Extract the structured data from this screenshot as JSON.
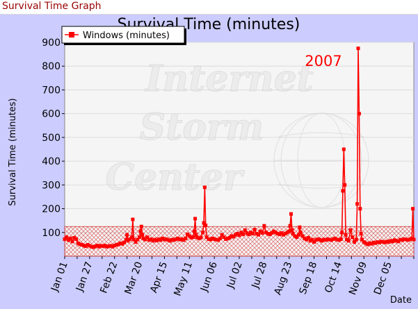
{
  "page": {
    "title": "Survival Time Graph"
  },
  "chart_data": {
    "type": "line",
    "title": "Survival Time (minutes)",
    "xlabel": "Date",
    "ylabel": "Survival Time (minutes)",
    "year_annotation": "2007",
    "watermark": [
      "Internet",
      "Storm",
      "Center"
    ],
    "ylim": [
      0,
      900
    ],
    "yticks": [
      100,
      200,
      300,
      400,
      500,
      600,
      700,
      800,
      900
    ],
    "xticks": [
      "Jan 01",
      "Jan 27",
      "Feb 22",
      "Mar 20",
      "Apr 15",
      "May 11",
      "Jun 06",
      "Jul 02",
      "Jul 28",
      "Aug 23",
      "Sep 18",
      "Oct 14",
      "Nov 09",
      "Dec 05"
    ],
    "xtick_days": [
      0,
      26,
      52,
      78,
      104,
      130,
      156,
      182,
      208,
      234,
      260,
      286,
      312,
      338
    ],
    "x_range_days": [
      0,
      364
    ],
    "threshold": 125,
    "grid": true,
    "legend_position": "top-left",
    "colors": {
      "series": "#ff0000",
      "background": "#ccccff",
      "plot": "#f5f5f5",
      "title_text": "#990000",
      "hatch": "#dd6666"
    },
    "series": [
      {
        "name": "Windows (minutes)",
        "points": [
          [
            0,
            72
          ],
          [
            2,
            80
          ],
          [
            4,
            68
          ],
          [
            6,
            75
          ],
          [
            8,
            62
          ],
          [
            10,
            78
          ],
          [
            12,
            72
          ],
          [
            14,
            55
          ],
          [
            16,
            50
          ],
          [
            18,
            48
          ],
          [
            20,
            45
          ],
          [
            22,
            42
          ],
          [
            24,
            48
          ],
          [
            26,
            44
          ],
          [
            28,
            40
          ],
          [
            30,
            38
          ],
          [
            32,
            42
          ],
          [
            34,
            45
          ],
          [
            36,
            40
          ],
          [
            38,
            44
          ],
          [
            40,
            42
          ],
          [
            42,
            45
          ],
          [
            44,
            40
          ],
          [
            46,
            42
          ],
          [
            48,
            44
          ],
          [
            50,
            40
          ],
          [
            52,
            45
          ],
          [
            54,
            48
          ],
          [
            56,
            50
          ],
          [
            58,
            55
          ],
          [
            60,
            52
          ],
          [
            62,
            58
          ],
          [
            64,
            70
          ],
          [
            65,
            90
          ],
          [
            66,
            65
          ],
          [
            68,
            72
          ],
          [
            70,
            80
          ],
          [
            71,
            155
          ],
          [
            72,
            70
          ],
          [
            74,
            60
          ],
          [
            76,
            70
          ],
          [
            78,
            80
          ],
          [
            79,
            105
          ],
          [
            80,
            125
          ],
          [
            81,
            90
          ],
          [
            82,
            75
          ],
          [
            84,
            70
          ],
          [
            86,
            80
          ],
          [
            88,
            68
          ],
          [
            90,
            72
          ],
          [
            92,
            65
          ],
          [
            94,
            70
          ],
          [
            96,
            66
          ],
          [
            98,
            72
          ],
          [
            100,
            68
          ],
          [
            102,
            75
          ],
          [
            104,
            70
          ],
          [
            106,
            72
          ],
          [
            108,
            68
          ],
          [
            110,
            65
          ],
          [
            112,
            70
          ],
          [
            114,
            68
          ],
          [
            116,
            72
          ],
          [
            118,
            75
          ],
          [
            120,
            70
          ],
          [
            122,
            72
          ],
          [
            124,
            68
          ],
          [
            126,
            75
          ],
          [
            128,
            92
          ],
          [
            130,
            85
          ],
          [
            132,
            78
          ],
          [
            134,
            80
          ],
          [
            135,
            105
          ],
          [
            136,
            158
          ],
          [
            137,
            90
          ],
          [
            138,
            80
          ],
          [
            140,
            75
          ],
          [
            142,
            78
          ],
          [
            144,
            100
          ],
          [
            145,
            140
          ],
          [
            146,
            290
          ],
          [
            147,
            130
          ],
          [
            148,
            80
          ],
          [
            150,
            72
          ],
          [
            152,
            70
          ],
          [
            154,
            75
          ],
          [
            156,
            72
          ],
          [
            158,
            70
          ],
          [
            160,
            68
          ],
          [
            162,
            75
          ],
          [
            164,
            90
          ],
          [
            166,
            80
          ],
          [
            168,
            72
          ],
          [
            170,
            75
          ],
          [
            172,
            78
          ],
          [
            174,
            85
          ],
          [
            176,
            82
          ],
          [
            178,
            90
          ],
          [
            180,
            95
          ],
          [
            182,
            88
          ],
          [
            184,
            100
          ],
          [
            186,
            92
          ],
          [
            188,
            110
          ],
          [
            190,
            98
          ],
          [
            192,
            92
          ],
          [
            194,
            100
          ],
          [
            196,
            95
          ],
          [
            198,
            112
          ],
          [
            200,
            95
          ],
          [
            202,
            90
          ],
          [
            204,
            105
          ],
          [
            206,
            98
          ],
          [
            208,
            128
          ],
          [
            210,
            100
          ],
          [
            212,
            95
          ],
          [
            214,
            92
          ],
          [
            216,
            98
          ],
          [
            218,
            105
          ],
          [
            220,
            100
          ],
          [
            222,
            95
          ],
          [
            224,
            92
          ],
          [
            226,
            98
          ],
          [
            228,
            90
          ],
          [
            230,
            95
          ],
          [
            232,
            100
          ],
          [
            234,
            105
          ],
          [
            235,
            128
          ],
          [
            236,
            178
          ],
          [
            237,
            110
          ],
          [
            238,
            95
          ],
          [
            240,
            85
          ],
          [
            242,
            80
          ],
          [
            244,
            90
          ],
          [
            245,
            122
          ],
          [
            246,
            100
          ],
          [
            248,
            85
          ],
          [
            250,
            75
          ],
          [
            252,
            70
          ],
          [
            254,
            78
          ],
          [
            256,
            65
          ],
          [
            258,
            70
          ],
          [
            260,
            60
          ],
          [
            262,
            68
          ],
          [
            264,
            72
          ],
          [
            266,
            70
          ],
          [
            268,
            65
          ],
          [
            270,
            70
          ],
          [
            272,
            68
          ],
          [
            274,
            72
          ],
          [
            276,
            70
          ],
          [
            278,
            68
          ],
          [
            280,
            72
          ],
          [
            282,
            75
          ],
          [
            284,
            70
          ],
          [
            286,
            68
          ],
          [
            288,
            72
          ],
          [
            289,
            100
          ],
          [
            290,
            275
          ],
          [
            291,
            450
          ],
          [
            292,
            300
          ],
          [
            293,
            90
          ],
          [
            294,
            70
          ],
          [
            296,
            65
          ],
          [
            298,
            110
          ],
          [
            300,
            80
          ],
          [
            302,
            60
          ],
          [
            304,
            70
          ],
          [
            305,
            220
          ],
          [
            306,
            875
          ],
          [
            307,
            600
          ],
          [
            308,
            200
          ],
          [
            309,
            95
          ],
          [
            310,
            70
          ],
          [
            312,
            60
          ],
          [
            314,
            55
          ],
          [
            316,
            50
          ],
          [
            318,
            55
          ],
          [
            320,
            52
          ],
          [
            322,
            58
          ],
          [
            324,
            55
          ],
          [
            326,
            60
          ],
          [
            328,
            58
          ],
          [
            330,
            62
          ],
          [
            332,
            60
          ],
          [
            334,
            58
          ],
          [
            336,
            62
          ],
          [
            338,
            60
          ],
          [
            340,
            65
          ],
          [
            342,
            62
          ],
          [
            344,
            68
          ],
          [
            346,
            65
          ],
          [
            348,
            62
          ],
          [
            350,
            70
          ],
          [
            352,
            68
          ],
          [
            354,
            72
          ],
          [
            356,
            70
          ],
          [
            358,
            68
          ],
          [
            360,
            72
          ],
          [
            362,
            75
          ],
          [
            363,
            200
          ],
          [
            364,
            70
          ]
        ]
      }
    ]
  }
}
